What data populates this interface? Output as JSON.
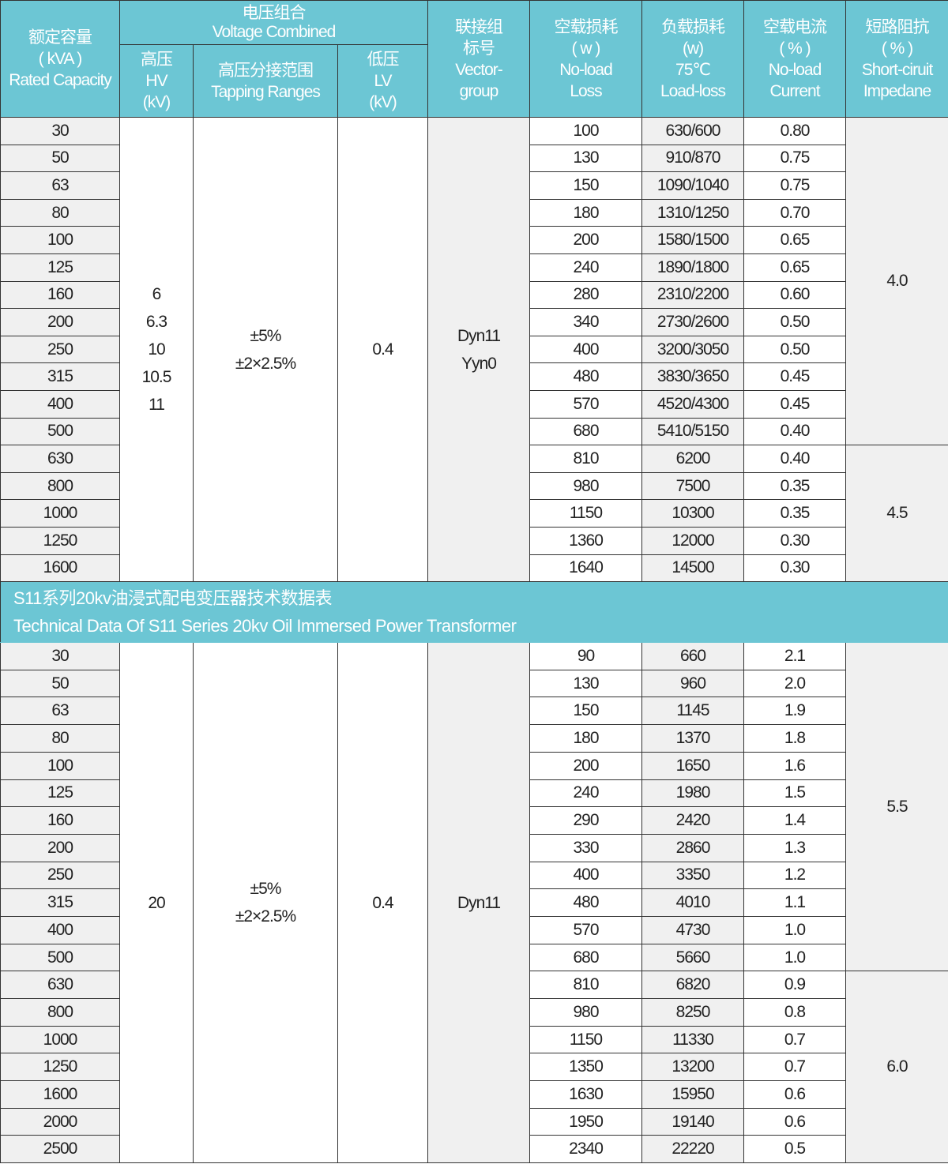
{
  "header": {
    "capacity": "额定容量\n( kVA )\nRated  Capacity",
    "voltage_combined": "电压组合\nVoltage Combined",
    "hv": "高压\nHV\n(kV)",
    "tapping": "高压分接范围\nTapping Ranges",
    "lv": "低压\nLV\n(kV)",
    "vector_group": "联接组\n标号\nVector-\ngroup",
    "noload_loss": "空载损耗\n( w )\nNo-load\nLoss",
    "load_loss": "负载损耗\n(w)\n75℃\nLoad-loss",
    "noload_current": "空载电流\n( % )\nNo-load\nCurrent",
    "impedance": "短路阻抗\n( % )\nShort-ciruit\nImpedane"
  },
  "colors": {
    "header_bg": "#6cc6d4",
    "shaded_cell": "#f0f0f0",
    "border": "#333333"
  },
  "sections": [
    {
      "hv": "6\n6.3\n10\n10.5\n11",
      "tapping": "±5%\n±2×2.5%",
      "lv": "0.4",
      "vector_group": "Dyn11\nYyn0",
      "rows": [
        {
          "capacity": "30",
          "noload_loss": "100",
          "load_loss": "630/600",
          "noload_current": "0.80"
        },
        {
          "capacity": "50",
          "noload_loss": "130",
          "load_loss": "910/870",
          "noload_current": "0.75"
        },
        {
          "capacity": "63",
          "noload_loss": "150",
          "load_loss": "1090/1040",
          "noload_current": "0.75"
        },
        {
          "capacity": "80",
          "noload_loss": "180",
          "load_loss": "1310/1250",
          "noload_current": "0.70"
        },
        {
          "capacity": "100",
          "noload_loss": "200",
          "load_loss": "1580/1500",
          "noload_current": "0.65"
        },
        {
          "capacity": "125",
          "noload_loss": "240",
          "load_loss": "1890/1800",
          "noload_current": "0.65"
        },
        {
          "capacity": "160",
          "noload_loss": "280",
          "load_loss": "2310/2200",
          "noload_current": "0.60"
        },
        {
          "capacity": "200",
          "noload_loss": "340",
          "load_loss": "2730/2600",
          "noload_current": "0.50"
        },
        {
          "capacity": "250",
          "noload_loss": "400",
          "load_loss": "3200/3050",
          "noload_current": "0.50"
        },
        {
          "capacity": "315",
          "noload_loss": "480",
          "load_loss": "3830/3650",
          "noload_current": "0.45"
        },
        {
          "capacity": "400",
          "noload_loss": "570",
          "load_loss": "4520/4300",
          "noload_current": "0.45"
        },
        {
          "capacity": "500",
          "noload_loss": "680",
          "load_loss": "5410/5150",
          "noload_current": "0.40"
        },
        {
          "capacity": "630",
          "noload_loss": "810",
          "load_loss": "6200",
          "noload_current": "0.40"
        },
        {
          "capacity": "800",
          "noload_loss": "980",
          "load_loss": "7500",
          "noload_current": "0.35"
        },
        {
          "capacity": "1000",
          "noload_loss": "1150",
          "load_loss": "10300",
          "noload_current": "0.35"
        },
        {
          "capacity": "1250",
          "noload_loss": "1360",
          "load_loss": "12000",
          "noload_current": "0.30"
        },
        {
          "capacity": "1600",
          "noload_loss": "1640",
          "load_loss": "14500",
          "noload_current": "0.30"
        }
      ],
      "impedance_groups": [
        {
          "value": "4.0",
          "rows": 12
        },
        {
          "value": "4.5",
          "rows": 5
        }
      ]
    },
    {
      "title_cn": "S11系列20kv油浸式配电变压器技术数据表",
      "title_en": "Technical Data Of S11 Series 20kv Oil Immersed Power Transformer",
      "hv": "20",
      "tapping": "±5%\n±2×2.5%",
      "lv": "0.4",
      "vector_group": "Dyn11",
      "rows": [
        {
          "capacity": "30",
          "noload_loss": "90",
          "load_loss": "660",
          "noload_current": "2.1"
        },
        {
          "capacity": "50",
          "noload_loss": "130",
          "load_loss": "960",
          "noload_current": "2.0"
        },
        {
          "capacity": "63",
          "noload_loss": "150",
          "load_loss": "1145",
          "noload_current": "1.9"
        },
        {
          "capacity": "80",
          "noload_loss": "180",
          "load_loss": "1370",
          "noload_current": "1.8"
        },
        {
          "capacity": "100",
          "noload_loss": "200",
          "load_loss": "1650",
          "noload_current": "1.6"
        },
        {
          "capacity": "125",
          "noload_loss": "240",
          "load_loss": "1980",
          "noload_current": "1.5"
        },
        {
          "capacity": "160",
          "noload_loss": "290",
          "load_loss": "2420",
          "noload_current": "1.4"
        },
        {
          "capacity": "200",
          "noload_loss": "330",
          "load_loss": "2860",
          "noload_current": "1.3"
        },
        {
          "capacity": "250",
          "noload_loss": "400",
          "load_loss": "3350",
          "noload_current": "1.2"
        },
        {
          "capacity": "315",
          "noload_loss": "480",
          "load_loss": "4010",
          "noload_current": "1.1"
        },
        {
          "capacity": "400",
          "noload_loss": "570",
          "load_loss": "4730",
          "noload_current": "1.0"
        },
        {
          "capacity": "500",
          "noload_loss": "680",
          "load_loss": "5660",
          "noload_current": "1.0"
        },
        {
          "capacity": "630",
          "noload_loss": "810",
          "load_loss": "6820",
          "noload_current": "0.9"
        },
        {
          "capacity": "800",
          "noload_loss": "980",
          "load_loss": "8250",
          "noload_current": "0.8"
        },
        {
          "capacity": "1000",
          "noload_loss": "1150",
          "load_loss": "11330",
          "noload_current": "0.7"
        },
        {
          "capacity": "1250",
          "noload_loss": "1350",
          "load_loss": "13200",
          "noload_current": "0.7"
        },
        {
          "capacity": "1600",
          "noload_loss": "1630",
          "load_loss": "15950",
          "noload_current": "0.6"
        },
        {
          "capacity": "2000",
          "noload_loss": "1950",
          "load_loss": "19140",
          "noload_current": "0.6"
        },
        {
          "capacity": "2500",
          "noload_loss": "2340",
          "load_loss": "22220",
          "noload_current": "0.5"
        }
      ],
      "impedance_groups": [
        {
          "value": "5.5",
          "rows": 12
        },
        {
          "value": "6.0",
          "rows": 7
        }
      ]
    }
  ]
}
